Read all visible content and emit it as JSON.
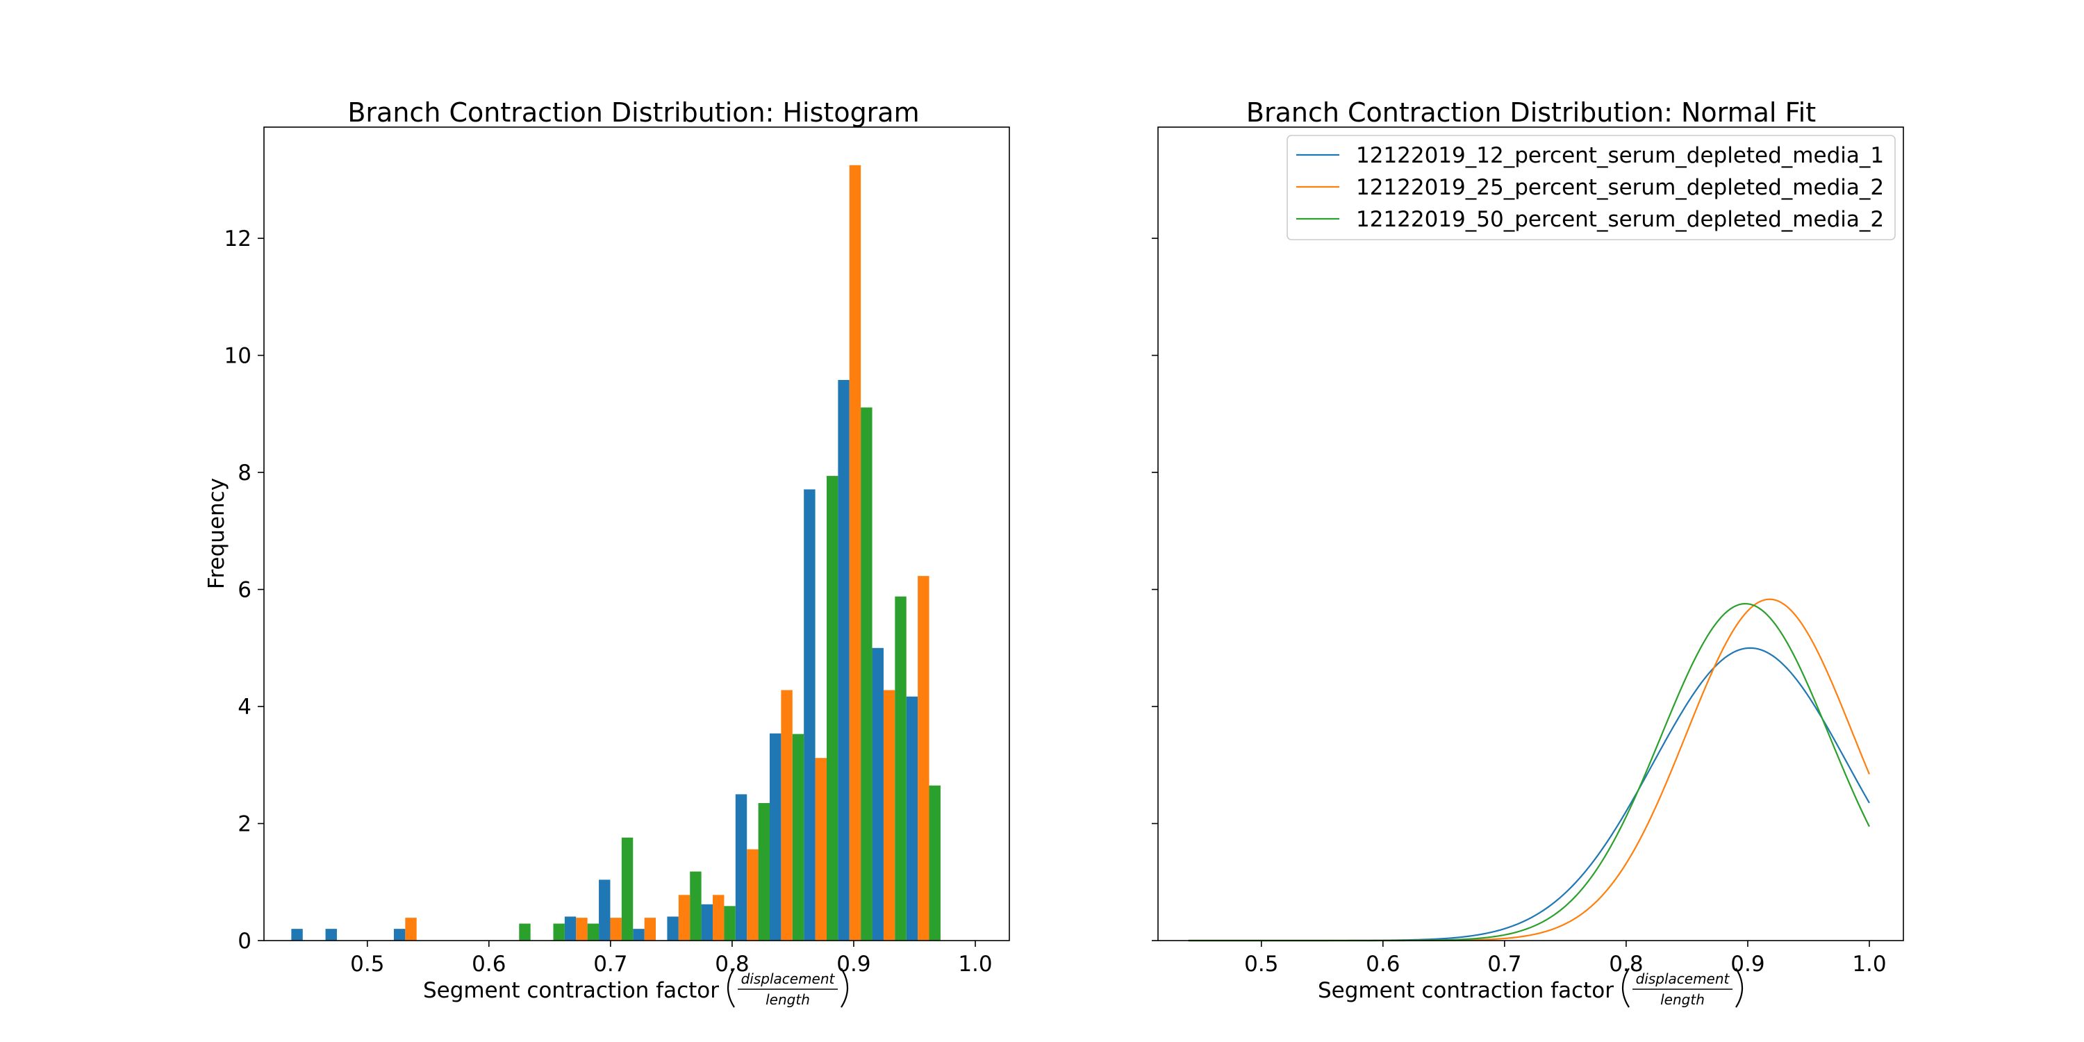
{
  "colors": {
    "series1": "#1f77b4",
    "series2": "#ff7f0e",
    "series3": "#2ca02c"
  },
  "chart_data": [
    {
      "type": "bar",
      "title": "Branch Contraction Distribution: Histogram",
      "xlabel": "Segment contraction factor",
      "xlabel_frac_num": "displacement",
      "xlabel_frac_den": "length",
      "ylabel": "Frequency",
      "xlim": [
        0.415,
        1.028
      ],
      "ylim": [
        0,
        13.9
      ],
      "xticks": [
        0.5,
        0.6,
        0.7,
        0.8,
        0.9,
        1.0
      ],
      "xtick_labels": [
        "0.5",
        "0.6",
        "0.7",
        "0.8",
        "0.9",
        "1.0"
      ],
      "yticks": [
        0,
        2,
        4,
        6,
        8,
        10,
        12
      ],
      "ytick_labels": [
        "0",
        "2",
        "4",
        "6",
        "8",
        "10",
        "12"
      ],
      "bin_start": 0.4375,
      "bin_width": 0.0281,
      "series": [
        {
          "name": "12122019_12_percent_serum_depleted_media_1",
          "values": [
            0.2,
            0.2,
            0,
            0.2,
            0,
            0,
            0,
            0,
            0.41,
            1.04,
            0.2,
            0.41,
            0.62,
            2.5,
            3.54,
            7.71,
            9.58,
            5.0,
            4.17
          ]
        },
        {
          "name": "12122019_25_percent_serum_depleted_media_2",
          "values": [
            0,
            0,
            0,
            0.39,
            0,
            0,
            0,
            0,
            0.39,
            0.39,
            0.39,
            0.78,
            0.78,
            1.56,
            4.28,
            3.12,
            13.25,
            4.28,
            6.23
          ]
        },
        {
          "name": "12122019_50_percent_serum_depleted_media_2",
          "values": [
            0,
            0,
            0,
            0,
            0,
            0,
            0.29,
            0.29,
            0.29,
            1.76,
            0,
            1.18,
            0.59,
            2.35,
            3.53,
            7.94,
            9.11,
            5.88,
            2.65
          ]
        }
      ]
    },
    {
      "type": "line",
      "title": "Branch Contraction Distribution: Normal Fit",
      "xlabel": "Segment contraction factor",
      "xlabel_frac_num": "displacement",
      "xlabel_frac_den": "length",
      "ylabel": "",
      "xlim": [
        0.415,
        1.028
      ],
      "ylim": [
        0,
        13.9
      ],
      "xticks": [
        0.5,
        0.6,
        0.7,
        0.8,
        0.9,
        1.0
      ],
      "xtick_labels": [
        "0.5",
        "0.6",
        "0.7",
        "0.8",
        "0.9",
        "1.0"
      ],
      "yticks": [
        0,
        2,
        4,
        6,
        8,
        10,
        12
      ],
      "legend_position": "upper right",
      "x_range": [
        0.44,
        1.0
      ],
      "series": [
        {
          "name": "12122019_12_percent_serum_depleted_media_1",
          "mean": 0.902,
          "std": 0.0798
        },
        {
          "name": "12122019_25_percent_serum_depleted_media_2",
          "mean": 0.918,
          "std": 0.0684
        },
        {
          "name": "12122019_50_percent_serum_depleted_media_2",
          "mean": 0.898,
          "std": 0.0693
        }
      ]
    }
  ]
}
